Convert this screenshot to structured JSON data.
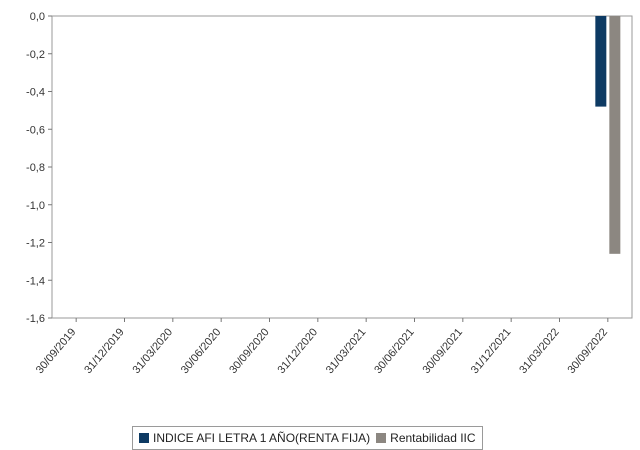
{
  "chart_data": {
    "type": "bar",
    "categories": [
      "30/09/2019",
      "31/12/2019",
      "31/03/2020",
      "30/06/2020",
      "30/09/2020",
      "31/12/2020",
      "31/03/2021",
      "30/06/2021",
      "30/09/2021",
      "31/12/2021",
      "31/03/2022",
      "30/09/2022"
    ],
    "series": [
      {
        "name": "INDICE AFI LETRA 1 AÑO(RENTA FIJA)",
        "color": "#0d3a63",
        "values": [
          null,
          null,
          null,
          null,
          null,
          null,
          null,
          null,
          null,
          null,
          null,
          -0.48
        ]
      },
      {
        "name": "Rentabilidad IIC",
        "color": "#8c8781",
        "values": [
          null,
          null,
          null,
          null,
          null,
          null,
          null,
          null,
          null,
          null,
          null,
          -1.26
        ]
      }
    ],
    "yticks": [
      "0,0",
      "-0,2",
      "-0,4",
      "-0,6",
      "-0,8",
      "-1,0",
      "-1,2",
      "-1,4",
      "-1,6"
    ],
    "ylim": [
      -1.6,
      0.0
    ],
    "grid": false,
    "legend_position": "bottom",
    "title": "",
    "xlabel": "",
    "ylabel": ""
  }
}
